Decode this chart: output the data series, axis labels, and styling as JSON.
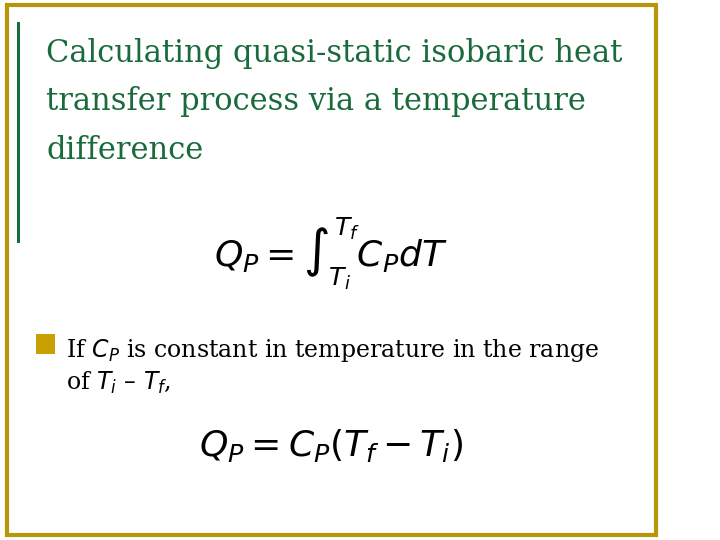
{
  "title_line1": "Calculating quasi-static isobaric heat",
  "title_line2": "transfer process via a temperature",
  "title_line3": "difference",
  "title_color": "#1a6b3c",
  "eq1": "$Q_P = \\int_{T_i}^{T_f} C_P dT$",
  "bullet_text_part1": "If $C_P$ is constant in temperature in the range",
  "bullet_text_part2": "of $T_i$ – $T_f$,",
  "bullet_color": "#c8a000",
  "eq2": "$Q_P = C_P \\left(T_f - T_i\\right)$",
  "bg_color": "#ffffff",
  "border_color_outer": "#b8960c",
  "border_color_inner": "#1a6b3c",
  "eq_color": "#000000",
  "text_color": "#000000",
  "eq_fontsize": 26,
  "title_fontsize": 22,
  "bullet_fontsize": 17
}
